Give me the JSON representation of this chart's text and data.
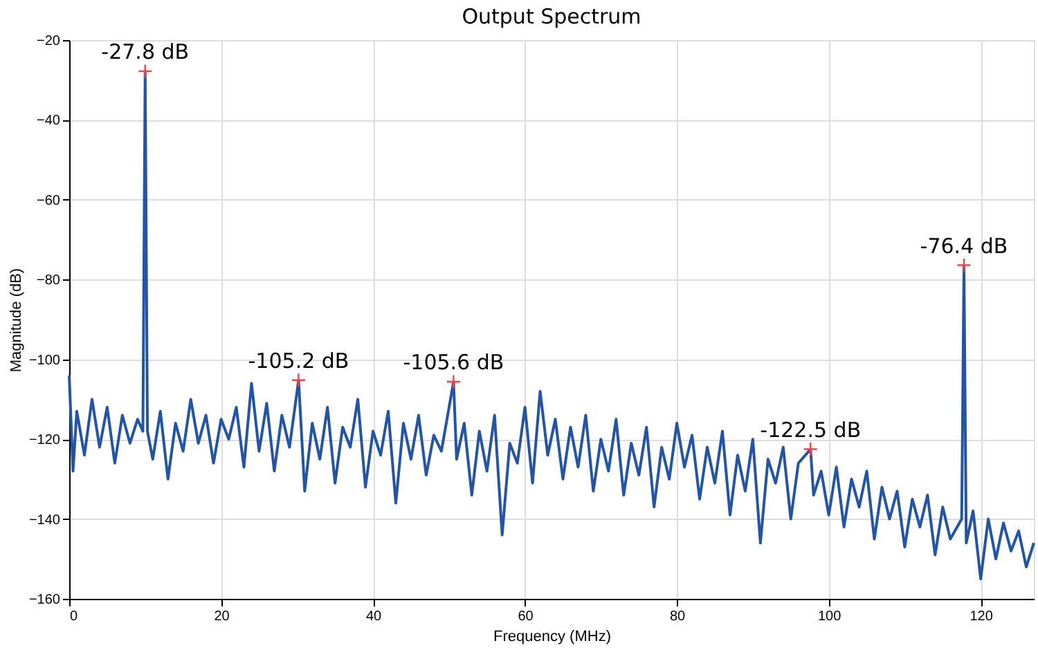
{
  "chart_data": {
    "type": "line",
    "title": "Output Spectrum",
    "xlabel": "Frequency (MHz)",
    "ylabel": "Magnitude (dB)",
    "xlim": [
      0,
      127
    ],
    "xticks": [
      0,
      20,
      40,
      60,
      80,
      100,
      120
    ],
    "ylim": [
      -160,
      -20
    ],
    "yticks": [
      -160,
      -140,
      -120,
      -100,
      -80,
      -60,
      -40,
      -20
    ],
    "grid": true,
    "series": [
      {
        "color": "#2455a4",
        "line_style": "solid",
        "marker": "none",
        "x": [
          0,
          0.5,
          1,
          2,
          3,
          4,
          5,
          6,
          7,
          8,
          9,
          9.7,
          10,
          10.3,
          11,
          12,
          13,
          14,
          15,
          16,
          17,
          18,
          19,
          20,
          21,
          22,
          23,
          24,
          25,
          26,
          27,
          28,
          29,
          30.2,
          31,
          32,
          33,
          34,
          35,
          36,
          37,
          38,
          39,
          40,
          41,
          42,
          43,
          44,
          45,
          46,
          47,
          48,
          49,
          50.6,
          51,
          52,
          53,
          54,
          55,
          56,
          57,
          58,
          59,
          60,
          61,
          62,
          63,
          64,
          65,
          66,
          67,
          68,
          69,
          70,
          71,
          72,
          73,
          74,
          75,
          76,
          77,
          78,
          79,
          80,
          81,
          82,
          83,
          84,
          85,
          86,
          87,
          88,
          89,
          90,
          91,
          92,
          93,
          94,
          95,
          96,
          97.6,
          98,
          99,
          100,
          101,
          102,
          103,
          104,
          105,
          106,
          107,
          108,
          109,
          110,
          111,
          112,
          113,
          114,
          115,
          116,
          117.5,
          117.8,
          118.1,
          119,
          120,
          121,
          122,
          123,
          124,
          125,
          126,
          127
        ],
        "values": [
          -104,
          -128,
          -113,
          -124,
          -110,
          -122,
          -112,
          -126,
          -114,
          -121,
          -115,
          -118,
          -27.8,
          -118,
          -125,
          -113,
          -130,
          -116,
          -123,
          -110,
          -121,
          -114,
          -126,
          -115,
          -120,
          -112,
          -127,
          -106,
          -123,
          -111,
          -128,
          -114,
          -122,
          -105.2,
          -133,
          -116,
          -125,
          -112,
          -131,
          -117,
          -122,
          -110,
          -132,
          -118,
          -124,
          -113,
          -136,
          -116,
          -125,
          -114,
          -129,
          -119,
          -123,
          -105.6,
          -125,
          -116,
          -134,
          -118,
          -128,
          -114,
          -144,
          -121,
          -126,
          -112,
          -131,
          -108,
          -124,
          -115,
          -130,
          -117,
          -127,
          -114,
          -133,
          -120,
          -128,
          -115,
          -134,
          -121,
          -129,
          -117,
          -137,
          -122,
          -130,
          -116,
          -127,
          -119,
          -135,
          -122,
          -131,
          -118,
          -139,
          -124,
          -133,
          -120,
          -146,
          -125,
          -131,
          -122,
          -140,
          -126,
          -122.5,
          -134,
          -128,
          -139,
          -127,
          -142,
          -130,
          -137,
          -128,
          -145,
          -132,
          -140,
          -133,
          -147,
          -135,
          -142,
          -134,
          -149,
          -137,
          -145,
          -140,
          -76.4,
          -146,
          -138,
          -155,
          -140,
          -150,
          -141,
          -148,
          -143,
          -152,
          -146
        ]
      },
      {
        "type": "scatter",
        "color": "#e8474c",
        "marker": "cross",
        "x": [
          10,
          30.2,
          50.6,
          97.6,
          117.8
        ],
        "values": [
          -27.8,
          -105.2,
          -105.6,
          -122.5,
          -76.4
        ]
      }
    ],
    "annotations": [
      {
        "text": "-27.8 dB",
        "x": 10,
        "y": -27.8
      },
      {
        "text": "-105.2 dB",
        "x": 30.2,
        "y": -105.2
      },
      {
        "text": "-105.6 dB",
        "x": 50.6,
        "y": -105.6
      },
      {
        "text": "-122.5 dB",
        "x": 97.6,
        "y": -122.5
      },
      {
        "text": "-76.4 dB",
        "x": 117.8,
        "y": -76.4
      }
    ]
  }
}
